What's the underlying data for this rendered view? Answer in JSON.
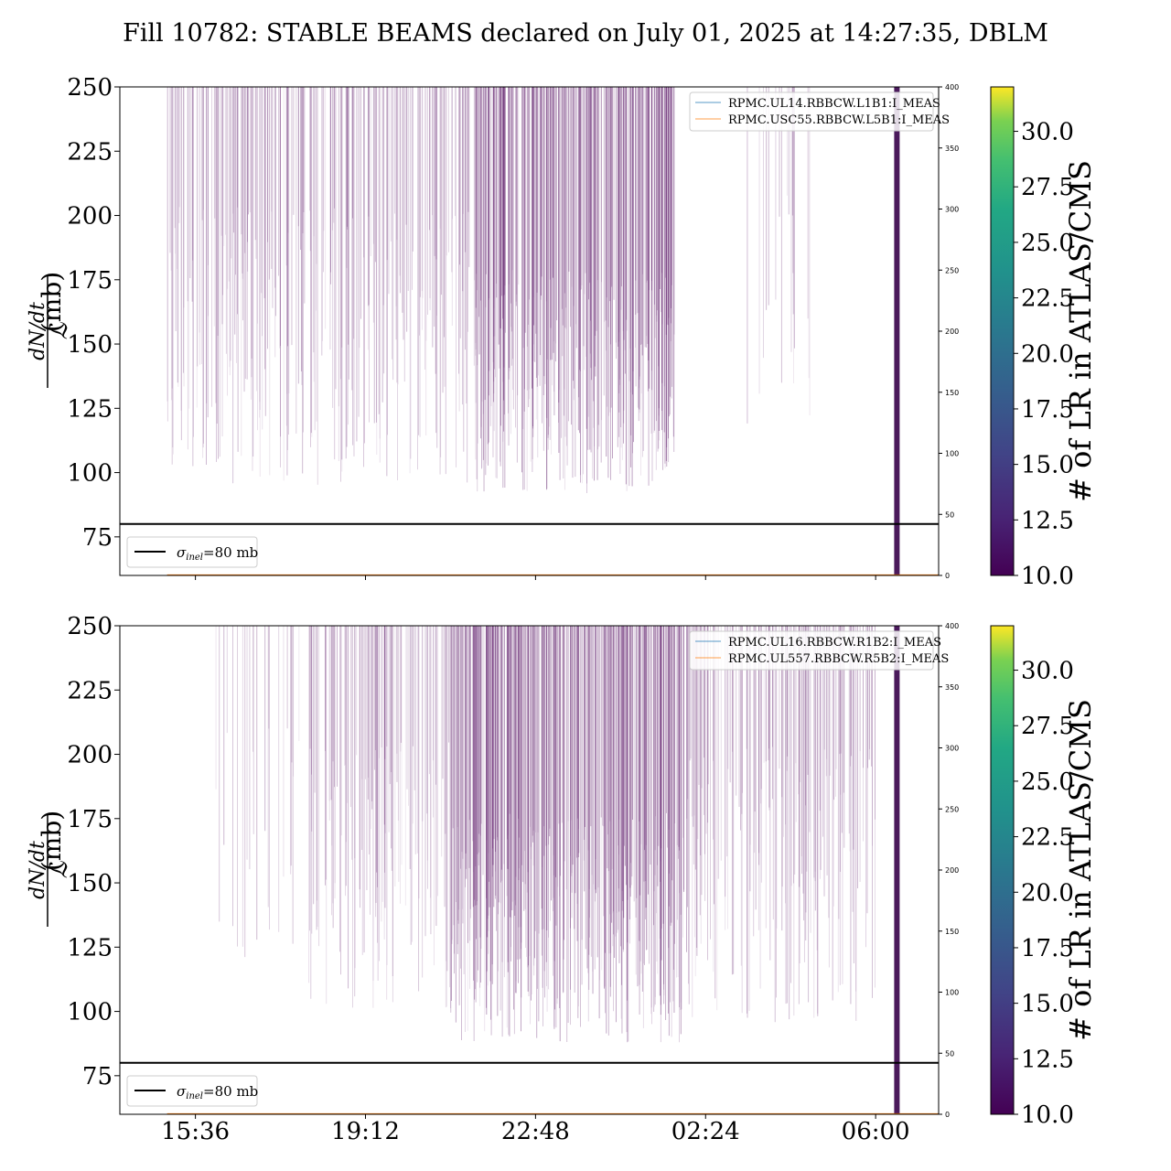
{
  "title": "Fill 10782: STABLE BEAMS declared on July 01, 2025 at 14:27:35, DBLM",
  "ylabel": {
    "numerator": "dN/dt",
    "denominator": "ℒ",
    "unit": "(mb)"
  },
  "colorbar": {
    "label": "# of LR in ATLAS/CMS",
    "ticks": [
      "10.0",
      "12.5",
      "15.0",
      "17.5",
      "20.0",
      "22.5",
      "25.0",
      "27.5",
      "30.0"
    ],
    "range": [
      10,
      32
    ],
    "colormap": "viridis"
  },
  "sigma_legend": {
    "symbol": "σ",
    "subscript": "inel",
    "text": "=80 mb"
  },
  "chart_data": [
    {
      "type": "line",
      "panel": "top",
      "x_ticks": [
        "15:36",
        "19:12",
        "22:48",
        "02:24",
        "06:00"
      ],
      "x_ticks_visible": false,
      "y_ticks": [
        "75",
        "100",
        "125",
        "150",
        "175",
        "200",
        "225",
        "250"
      ],
      "ylim": [
        60,
        250
      ],
      "y2_ticks": [
        "0",
        "50",
        "100",
        "150",
        "200",
        "250",
        "300",
        "350",
        "400"
      ],
      "y2lim": [
        0,
        400
      ],
      "reference_line": {
        "label": "σinel=80 mb",
        "y": 80,
        "color": "#000000"
      },
      "legend": [
        "RPMC.UL14.RBBCW.L1B1:I_MEAS",
        "RPMC.USC55.RBBCW.L5B1:I_MEAS"
      ],
      "legend_placement": "top-right",
      "series_colors": [
        "#1f77b4",
        "#ff7f0e"
      ],
      "spike_color": "#6a2c75",
      "dump_marker": {
        "x": "06:27",
        "color": "#4b1a5c"
      },
      "dense_segments": [
        {
          "start": "15:00",
          "end": "21:30",
          "density": "medium",
          "min": 95
        },
        {
          "start": "21:30",
          "end": "01:45",
          "density": "high",
          "min": 92
        },
        {
          "start": "03:15",
          "end": "04:45",
          "density": "low",
          "min": 115
        }
      ]
    },
    {
      "type": "line",
      "panel": "bottom",
      "x_ticks": [
        "15:36",
        "19:12",
        "22:48",
        "02:24",
        "06:00"
      ],
      "x_ticks_visible": true,
      "y_ticks": [
        "75",
        "100",
        "125",
        "150",
        "175",
        "200",
        "225",
        "250"
      ],
      "ylim": [
        60,
        250
      ],
      "y2_ticks": [
        "0",
        "50",
        "100",
        "150",
        "200",
        "250",
        "300",
        "350",
        "400"
      ],
      "y2lim": [
        0,
        400
      ],
      "reference_line": {
        "label": "σinel=80 mb",
        "y": 80,
        "color": "#000000"
      },
      "legend": [
        "RPMC.UL16.RBBCW.R1B2:I_MEAS",
        "RPMC.UL557.RBBCW.R5B2:I_MEAS"
      ],
      "legend_placement": "top-right",
      "series_colors": [
        "#1f77b4",
        "#ff7f0e"
      ],
      "spike_color": "#6a2c75",
      "dump_marker": {
        "x": "06:27",
        "color": "#4b1a5c"
      },
      "dense_segments": [
        {
          "start": "16:00",
          "end": "18:00",
          "density": "low",
          "min": 120
        },
        {
          "start": "18:00",
          "end": "21:00",
          "density": "medium",
          "min": 100
        },
        {
          "start": "21:00",
          "end": "02:00",
          "density": "high",
          "min": 88
        },
        {
          "start": "02:00",
          "end": "06:00",
          "density": "medium",
          "min": 95
        }
      ]
    }
  ]
}
